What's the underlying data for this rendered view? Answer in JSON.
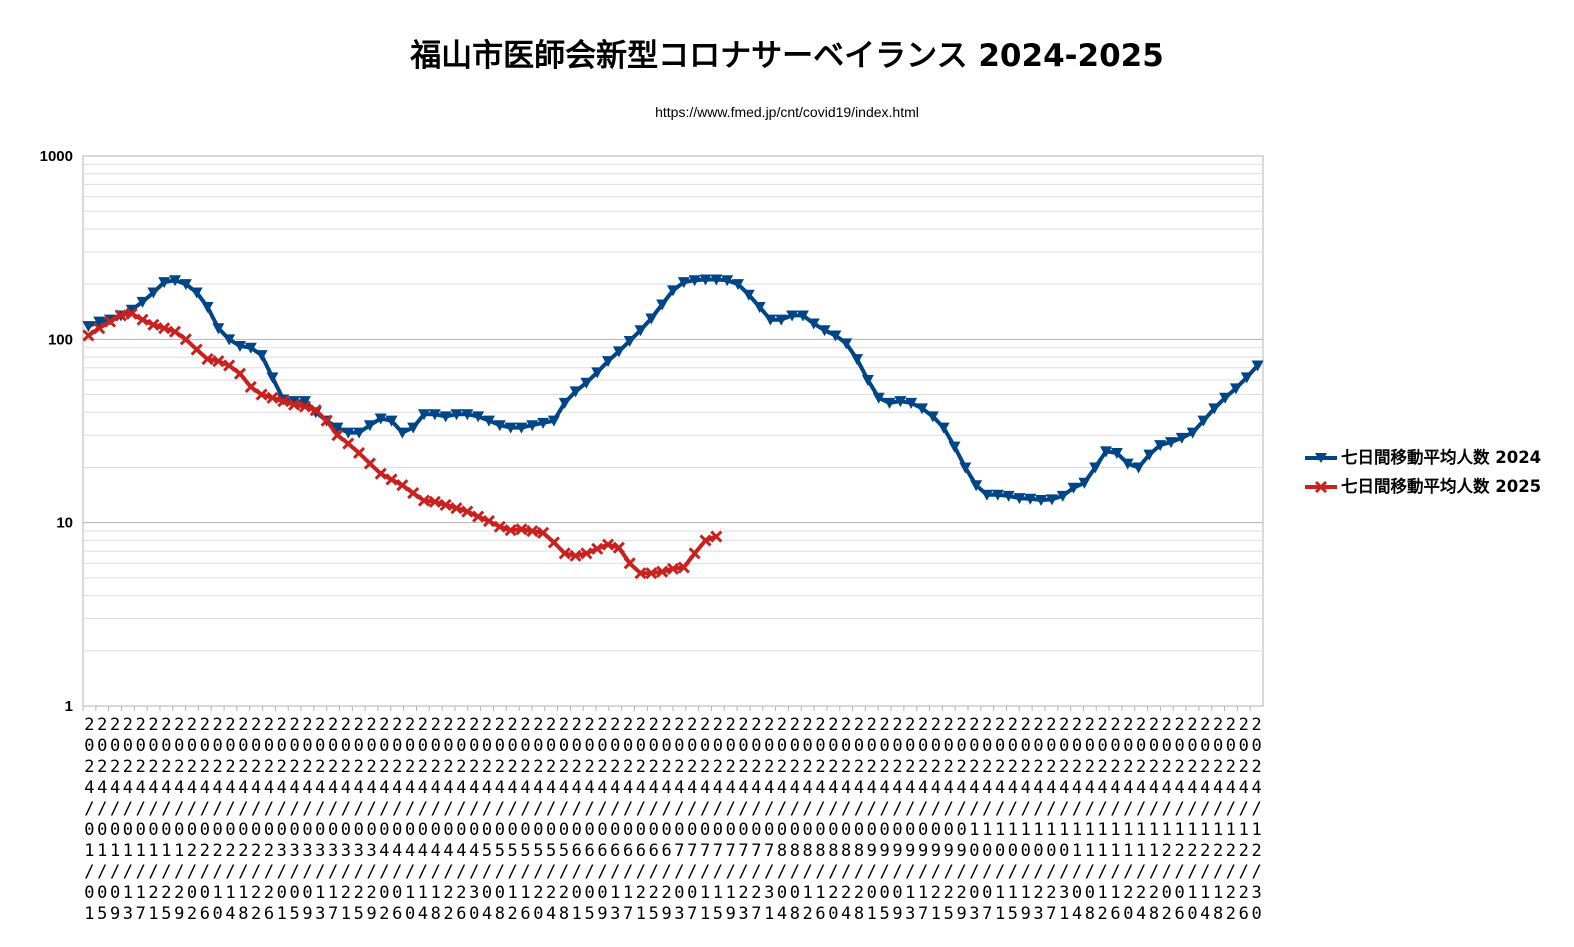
{
  "chart_data": {
    "type": "line",
    "title": "福山市医師会新型コロナサーベイランス 2024-2025",
    "subtitle": "https://www.fmed.jp/cnt/covid19/index.html",
    "xlabel": "",
    "ylabel": "",
    "y_scale": "log",
    "ylim": [
      1,
      1000
    ],
    "y_ticks": [
      "1",
      "10",
      "100",
      "1000"
    ],
    "grid": true,
    "legend_position": "right",
    "x_tick_labels": [
      "2024/01/01",
      "2024/01/05",
      "2024/01/09",
      "2024/01/13",
      "2024/01/17",
      "2024/01/21",
      "2024/01/25",
      "2024/01/29",
      "2024/02/02",
      "2024/02/06",
      "2024/02/10",
      "2024/02/14",
      "2024/02/18",
      "2024/02/22",
      "2024/02/26",
      "2024/03/01",
      "2024/03/05",
      "2024/03/09",
      "2024/03/13",
      "2024/03/17",
      "2024/03/21",
      "2024/03/25",
      "2024/03/29",
      "2024/04/02",
      "2024/04/06",
      "2024/04/10",
      "2024/04/14",
      "2024/04/18",
      "2024/04/22",
      "2024/04/26",
      "2024/04/30",
      "2024/05/04",
      "2024/05/08",
      "2024/05/12",
      "2024/05/16",
      "2024/05/20",
      "2024/05/24",
      "2024/05/28",
      "2024/06/01",
      "2024/06/05",
      "2024/06/09",
      "2024/06/13",
      "2024/06/17",
      "2024/06/21",
      "2024/06/25",
      "2024/06/29",
      "2024/07/03",
      "2024/07/07",
      "2024/07/11",
      "2024/07/15",
      "2024/07/19",
      "2024/07/23",
      "2024/07/27",
      "2024/07/31",
      "2024/08/04",
      "2024/08/08",
      "2024/08/12",
      "2024/08/16",
      "2024/08/20",
      "2024/08/24",
      "2024/08/28",
      "2024/09/01",
      "2024/09/05",
      "2024/09/09",
      "2024/09/13",
      "2024/09/17",
      "2024/09/21",
      "2024/09/25",
      "2024/09/29",
      "2024/10/03",
      "2024/10/07",
      "2024/10/11",
      "2024/10/15",
      "2024/10/19",
      "2024/10/23",
      "2024/10/27",
      "2024/10/31",
      "2024/11/04",
      "2024/11/08",
      "2024/11/12",
      "2024/11/16",
      "2024/11/20",
      "2024/11/24",
      "2024/11/28",
      "2024/12/02",
      "2024/12/06",
      "2024/12/10",
      "2024/12/14",
      "2024/12/18",
      "2024/12/22",
      "2024/12/26",
      "2024/12/30"
    ],
    "series": [
      {
        "name": "七日間移動平均人数 2024",
        "color": "#004586",
        "marker": "triangle-down",
        "values": [
          118,
          125,
          128,
          135,
          145,
          160,
          180,
          205,
          210,
          200,
          180,
          150,
          115,
          100,
          92,
          90,
          82,
          62,
          47,
          46,
          46,
          40,
          36,
          33,
          31,
          31,
          34,
          37,
          36,
          31,
          33,
          39,
          39,
          38,
          39,
          39,
          38,
          36,
          34,
          33,
          33,
          34,
          35,
          36,
          45,
          52,
          58,
          66,
          76,
          86,
          98,
          112,
          130,
          155,
          185,
          205,
          210,
          212,
          212,
          210,
          200,
          175,
          150,
          128,
          128,
          135,
          135,
          122,
          112,
          105,
          95,
          78,
          60,
          48,
          45,
          46,
          45,
          42,
          38,
          33,
          26,
          20,
          16,
          14.2,
          14.2,
          14,
          13.6,
          13.5,
          13.3,
          13.4,
          14,
          15.5,
          16.5,
          20,
          24.5,
          24,
          21,
          20,
          23.5,
          26.5,
          27.5,
          29,
          31,
          36,
          42,
          48,
          54,
          62,
          72
        ]
      },
      {
        "name": "七日間移動平均人数 2025",
        "color": "#c9211e",
        "marker": "x",
        "values": [
          105,
          115,
          125,
          135,
          138,
          128,
          120,
          115,
          110,
          100,
          88,
          78,
          76,
          72,
          65,
          55,
          50,
          48,
          46,
          44,
          43,
          41,
          36,
          30,
          27,
          24,
          21,
          18.5,
          17.2,
          16,
          14.5,
          13.2,
          13,
          12.5,
          12,
          11.5,
          10.8,
          10.2,
          9.5,
          9.1,
          9.2,
          9,
          8.8,
          7.8,
          6.8,
          6.6,
          6.8,
          7.2,
          7.6,
          7.3,
          6,
          5.3,
          5.3,
          5.4,
          5.6,
          5.7,
          6.8,
          8,
          8.4
        ]
      }
    ]
  }
}
